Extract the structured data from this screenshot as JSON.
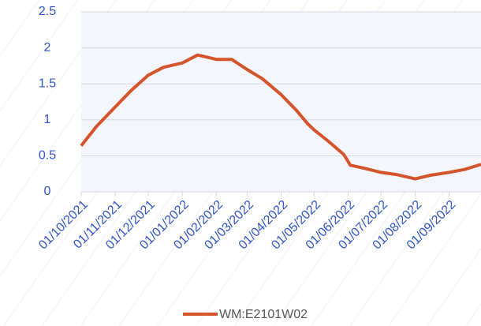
{
  "chart_data": {
    "type": "line",
    "x": [
      "2021-10-01",
      "2021-10-15",
      "2021-11-01",
      "2021-11-15",
      "2021-12-01",
      "2021-12-15",
      "2022-01-01",
      "2022-01-15",
      "2022-02-01",
      "2022-02-15",
      "2022-03-01",
      "2022-03-15",
      "2022-04-01",
      "2022-04-15",
      "2022-04-25",
      "2022-05-01",
      "2022-05-15",
      "2022-05-28",
      "2022-06-03",
      "2022-06-15",
      "2022-07-01",
      "2022-07-15",
      "2022-08-01",
      "2022-08-15",
      "2022-09-01",
      "2022-09-15",
      "2022-09-30"
    ],
    "series": [
      {
        "name": "WM:E2101W02",
        "color": "#d4552b",
        "values": [
          0.64,
          0.91,
          1.18,
          1.4,
          1.62,
          1.73,
          1.79,
          1.9,
          1.84,
          1.84,
          1.7,
          1.57,
          1.35,
          1.13,
          0.95,
          0.86,
          0.69,
          0.52,
          0.37,
          0.33,
          0.27,
          0.24,
          0.18,
          0.23,
          0.27,
          0.31,
          0.38
        ]
      }
    ],
    "xlim": [
      "2021-10-01",
      "2022-09-30"
    ],
    "xticks": [
      {
        "value": "2021-10-01",
        "label": "01/10/2021"
      },
      {
        "value": "2021-11-01",
        "label": "01/11/2021"
      },
      {
        "value": "2021-12-01",
        "label": "01/12/2021"
      },
      {
        "value": "2022-01-01",
        "label": "01/01/2022"
      },
      {
        "value": "2022-02-01",
        "label": "01/02/2022"
      },
      {
        "value": "2022-03-01",
        "label": "01/03/2022"
      },
      {
        "value": "2022-04-01",
        "label": "01/04/2022"
      },
      {
        "value": "2022-05-01",
        "label": "01/05/2022"
      },
      {
        "value": "2022-06-01",
        "label": "01/06/2022"
      },
      {
        "value": "2022-07-01",
        "label": "01/07/2022"
      },
      {
        "value": "2022-08-01",
        "label": "01/08/2022"
      },
      {
        "value": "2022-09-01",
        "label": "01/09/2022"
      }
    ],
    "ylim": [
      0,
      2.5
    ],
    "yticks": [
      0,
      0.5,
      1,
      1.5,
      2,
      2.5
    ],
    "grid": true
  }
}
